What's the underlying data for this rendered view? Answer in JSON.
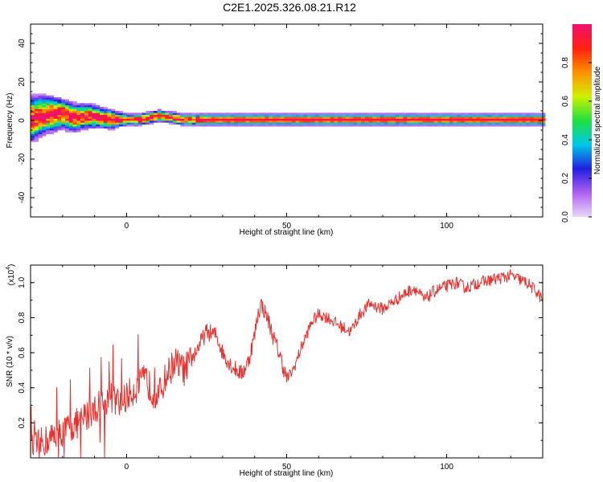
{
  "title": "C2E1.2025.326.08.21.R12",
  "colors": {
    "line": "#e8312e",
    "axis": "#000000",
    "colormap": [
      "#e8d8f8",
      "#b060f0",
      "#2020e0",
      "#00c8e8",
      "#20e040",
      "#d0f000",
      "#ff9000",
      "#ff2010",
      "#f01070"
    ]
  },
  "chart_data": [
    {
      "type": "heatmap",
      "xlabel": "Height of straight line (km)",
      "ylabel": "Frequency (Hz)",
      "xlim": [
        -30,
        130
      ],
      "ylim": [
        -50,
        50
      ],
      "xticks": [
        0,
        50,
        100
      ],
      "yticks": [
        -40,
        -20,
        0,
        20,
        40
      ],
      "colorbar": {
        "label": "Normalized spectral amplitude",
        "ticks": [
          "0.0",
          "0.2",
          "0.4",
          "0.6",
          "0.8"
        ],
        "tick_values": [
          0,
          0.2,
          0.4,
          0.6,
          0.8
        ],
        "range": [
          0,
          1
        ]
      },
      "band_center_hz": [
        [
          -30,
          0
        ],
        [
          -27,
          2
        ],
        [
          -24,
          3
        ],
        [
          -20,
          3
        ],
        [
          -16,
          1
        ],
        [
          -12,
          2
        ],
        [
          -8,
          1
        ],
        [
          -4,
          0
        ],
        [
          0,
          0
        ],
        [
          4,
          0
        ],
        [
          7,
          1
        ],
        [
          10,
          2
        ],
        [
          14,
          1
        ],
        [
          18,
          0
        ],
        [
          25,
          0
        ],
        [
          130,
          0
        ]
      ],
      "band_halfwidth_hz": [
        [
          -30,
          12
        ],
        [
          -20,
          8
        ],
        [
          -5,
          5
        ],
        [
          0,
          3
        ],
        [
          20,
          3
        ],
        [
          130,
          3
        ]
      ]
    },
    {
      "type": "line",
      "xlabel": "Height of straight line (km)",
      "ylabel": "SNR (10 * v/v)",
      "yscale_label": "(x10",
      "yscale_exp": "4",
      "yscale_close": ")",
      "xlim": [
        -30,
        130
      ],
      "ylim": [
        0,
        1.1
      ],
      "xticks": [
        0,
        50,
        100
      ],
      "yticks": [
        "0.2",
        "0.4",
        "0.6",
        "0.8",
        "1.0"
      ],
      "ytick_values": [
        0.2,
        0.4,
        0.6,
        0.8,
        1.0
      ],
      "trend": [
        [
          -30,
          0.05
        ],
        [
          -25,
          0.1
        ],
        [
          -20,
          0.15
        ],
        [
          -15,
          0.2
        ],
        [
          -10,
          0.28
        ],
        [
          -5,
          0.35
        ],
        [
          -2,
          0.3
        ],
        [
          0,
          0.35
        ],
        [
          3,
          0.4
        ],
        [
          6,
          0.45
        ],
        [
          8,
          0.38
        ],
        [
          10,
          0.35
        ],
        [
          12,
          0.45
        ],
        [
          15,
          0.55
        ],
        [
          18,
          0.5
        ],
        [
          20,
          0.55
        ],
        [
          22,
          0.62
        ],
        [
          25,
          0.72
        ],
        [
          28,
          0.7
        ],
        [
          30,
          0.6
        ],
        [
          33,
          0.52
        ],
        [
          36,
          0.48
        ],
        [
          38,
          0.55
        ],
        [
          40,
          0.7
        ],
        [
          41,
          0.82
        ],
        [
          42,
          0.88
        ],
        [
          44,
          0.8
        ],
        [
          46,
          0.68
        ],
        [
          48,
          0.58
        ],
        [
          50,
          0.45
        ],
        [
          52,
          0.5
        ],
        [
          55,
          0.65
        ],
        [
          58,
          0.78
        ],
        [
          60,
          0.82
        ],
        [
          63,
          0.8
        ],
        [
          66,
          0.76
        ],
        [
          70,
          0.72
        ],
        [
          73,
          0.82
        ],
        [
          76,
          0.88
        ],
        [
          80,
          0.85
        ],
        [
          84,
          0.9
        ],
        [
          88,
          0.95
        ],
        [
          90,
          0.97
        ],
        [
          93,
          0.9
        ],
        [
          96,
          0.95
        ],
        [
          100,
          0.98
        ],
        [
          103,
          1.0
        ],
        [
          106,
          0.97
        ],
        [
          110,
          1.0
        ],
        [
          115,
          1.02
        ],
        [
          120,
          1.04
        ],
        [
          125,
          1.0
        ],
        [
          128,
          0.95
        ],
        [
          130,
          0.9
        ]
      ]
    }
  ]
}
